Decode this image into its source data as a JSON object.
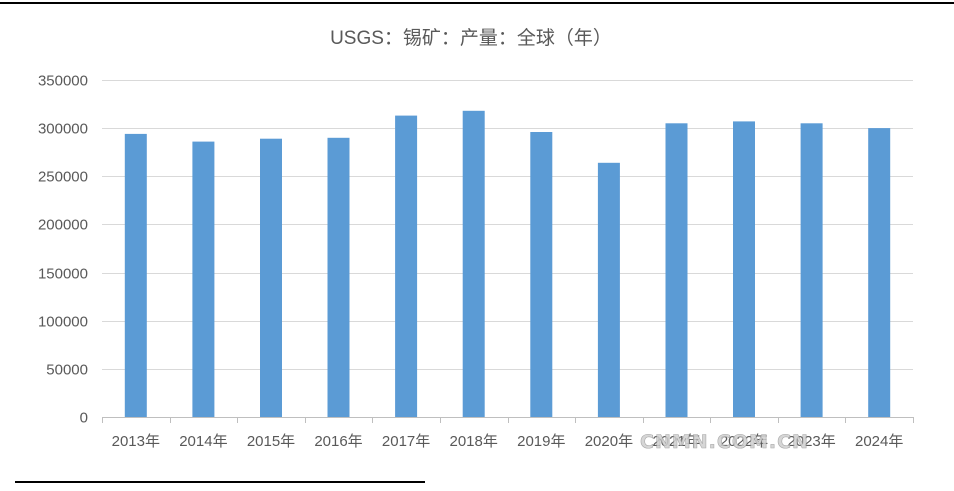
{
  "chart_data": {
    "type": "bar",
    "title": "USGS：锡矿：产量：全球（年）",
    "xlabel": "",
    "ylabel": "",
    "categories": [
      "2013年",
      "2014年",
      "2015年",
      "2016年",
      "2017年",
      "2018年",
      "2019年",
      "2020年",
      "2021年",
      "2022年",
      "2023年",
      "2024年"
    ],
    "values": [
      294000,
      286000,
      289000,
      290000,
      313000,
      318000,
      296000,
      264000,
      305000,
      307000,
      305000,
      300000
    ],
    "ylim": [
      0,
      350000
    ],
    "yticks": [
      0,
      50000,
      100000,
      150000,
      200000,
      250000,
      300000,
      350000
    ],
    "grid": true,
    "legend": "none",
    "colors": {
      "bar": "#5b9bd5",
      "gridline": "#d9d9d9",
      "axis": "#bfbfbf",
      "text": "#595959"
    }
  },
  "watermark": "CNMN.COM.CN"
}
